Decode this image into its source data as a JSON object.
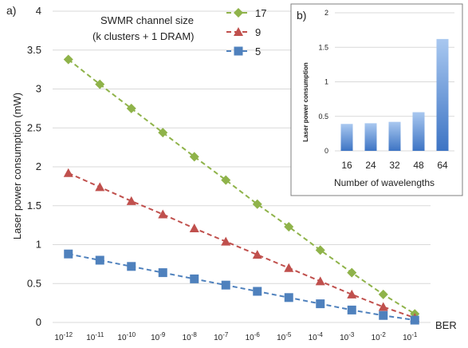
{
  "chart_data": [
    {
      "panel_label": "a)",
      "type": "line",
      "legend_title_line1": "SWMR channel size",
      "legend_title_line2": "(k clusters + 1 DRAM)",
      "legend_position": "top-center",
      "ylabel": "Laser power consumption (mW)",
      "xlabel": "BER",
      "ylim": [
        0,
        4
      ],
      "yticks": [
        "0",
        "0.5",
        "1",
        "1.5",
        "2",
        "2.5",
        "3",
        "3.5",
        "4"
      ],
      "xticks_base": "10",
      "xticks_exp": [
        "-12",
        "-11",
        "-10",
        "-9",
        "-8",
        "-7",
        "-6",
        "-5",
        "-4",
        "-3",
        "-2",
        "-1"
      ],
      "x": [
        -12,
        -11,
        -10,
        -9,
        -8,
        -7,
        -6,
        -5,
        -4,
        -3,
        -2,
        -1
      ],
      "grid": "horizontal",
      "series": [
        {
          "name": "17",
          "color": "#8fb34a",
          "marker": "diamond",
          "values": [
            3.38,
            3.06,
            2.75,
            2.44,
            2.13,
            1.83,
            1.52,
            1.23,
            0.93,
            0.64,
            0.36,
            0.11
          ]
        },
        {
          "name": "9",
          "color": "#c0504d",
          "marker": "triangle",
          "values": [
            1.92,
            1.74,
            1.56,
            1.39,
            1.21,
            1.04,
            0.87,
            0.7,
            0.53,
            0.36,
            0.2,
            0.06
          ]
        },
        {
          "name": "5",
          "color": "#4f81bd",
          "marker": "square",
          "values": [
            0.88,
            0.8,
            0.72,
            0.64,
            0.56,
            0.48,
            0.4,
            0.32,
            0.24,
            0.16,
            0.09,
            0.03
          ]
        }
      ]
    },
    {
      "panel_label": "b)",
      "type": "bar",
      "ylabel": "Laser power consumption",
      "xlabel": "Number of wavelengths",
      "ylim": [
        0,
        2
      ],
      "yticks": [
        "0",
        "0.5",
        "1",
        "1.5",
        "2"
      ],
      "categories": [
        "16",
        "24",
        "32",
        "48",
        "64"
      ],
      "values": [
        0.39,
        0.4,
        0.42,
        0.56,
        1.62
      ],
      "color": "#4f81bd"
    }
  ]
}
